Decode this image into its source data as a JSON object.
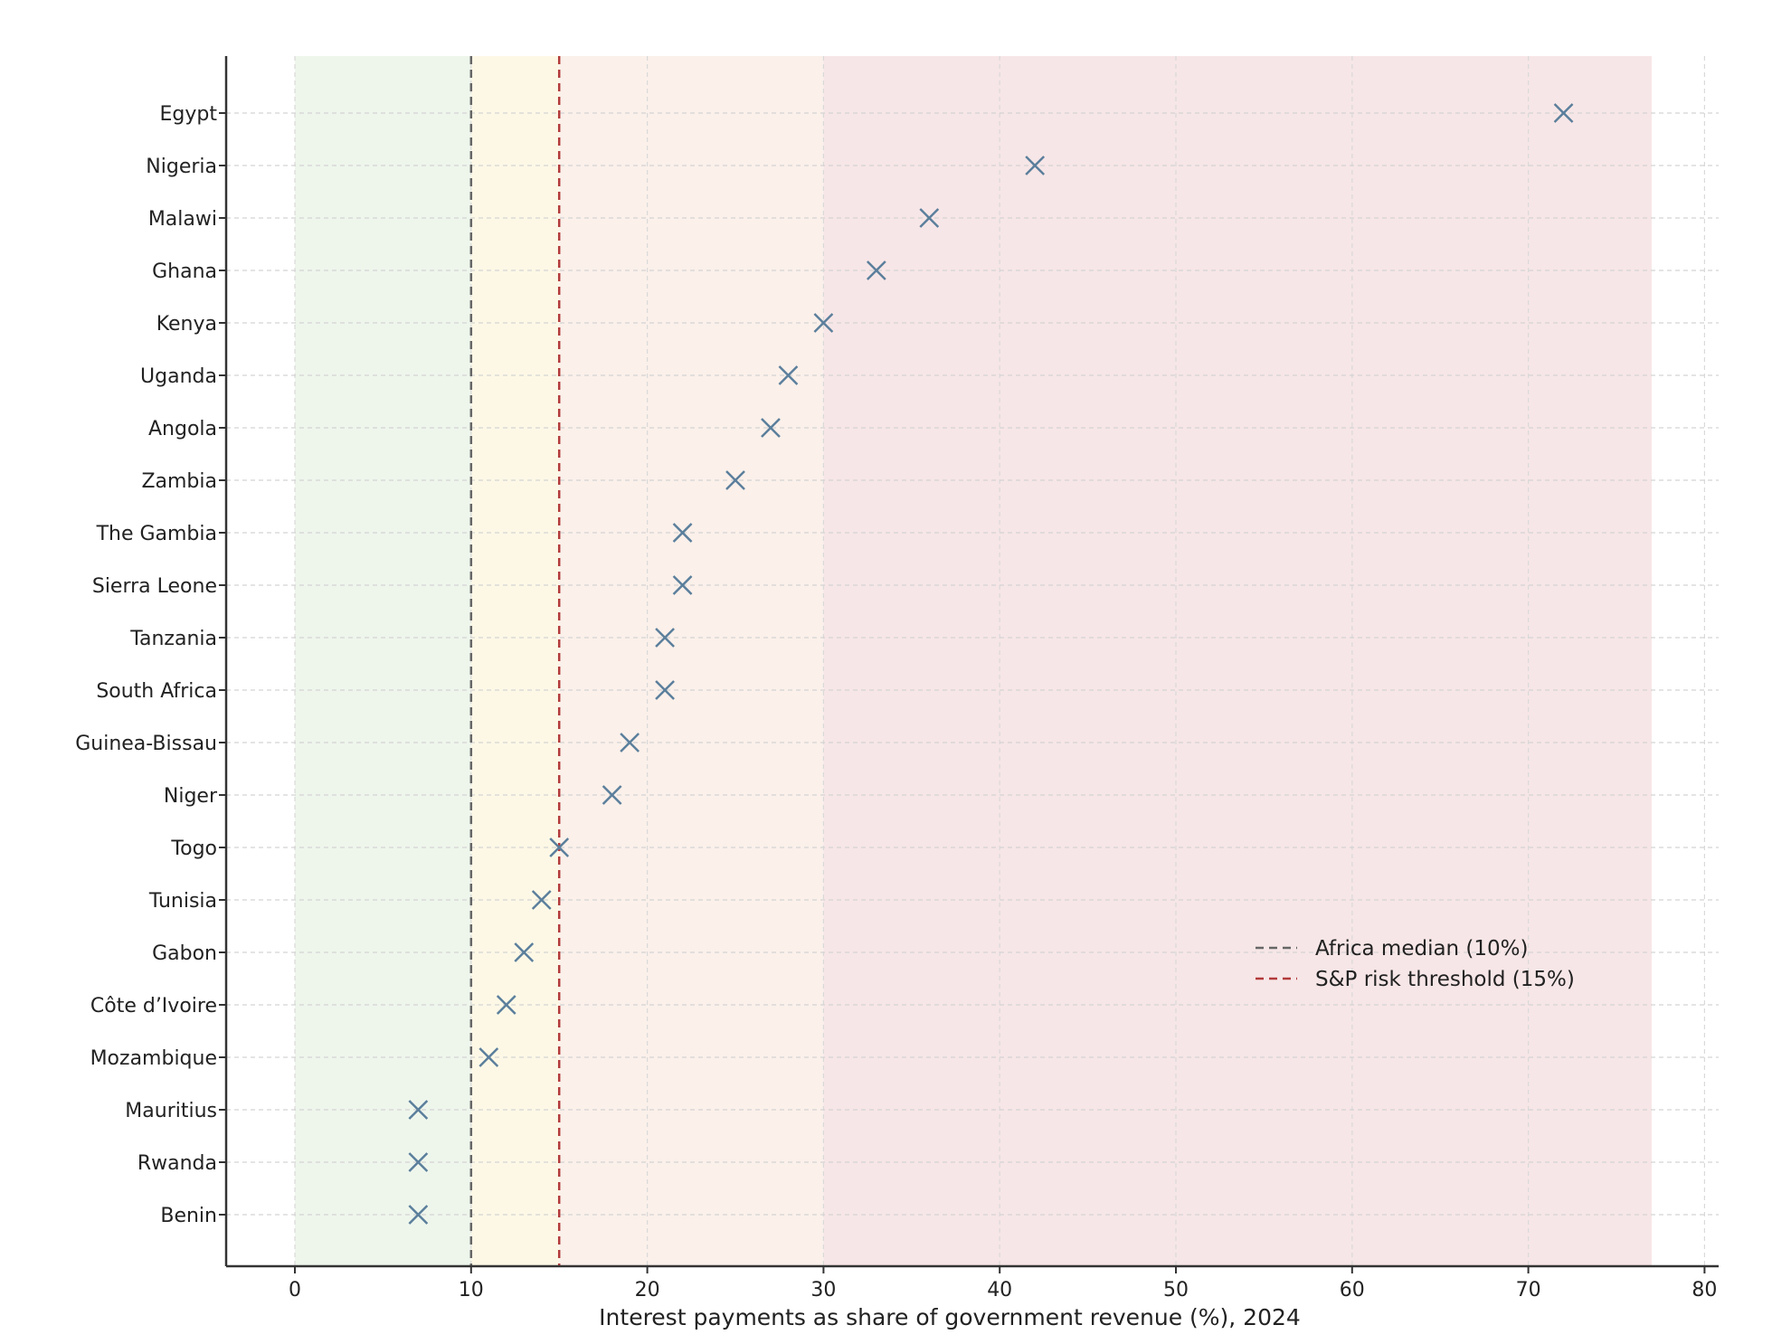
{
  "chart_data": {
    "type": "scatter",
    "title": "",
    "xlabel": "Interest payments as share of government revenue (%), 2024",
    "ylabel": "",
    "xlim": [
      -4,
      81
    ],
    "xticks": [
      0,
      10,
      20,
      30,
      40,
      50,
      60,
      70,
      80
    ],
    "grid": true,
    "legend_position": "lower-right",
    "marker": "x",
    "marker_color": "#5b7f9c",
    "bands": [
      {
        "from": 0,
        "to": 10,
        "color": "#eef6ec"
      },
      {
        "from": 10,
        "to": 15,
        "color": "#fdf8e6"
      },
      {
        "from": 15,
        "to": 30,
        "color": "#fbf0ea"
      },
      {
        "from": 30,
        "to": 77,
        "color": "#f7e6e7"
      }
    ],
    "reference_lines": [
      {
        "x": 10,
        "label": "Africa median (10%)",
        "color": "#666666"
      },
      {
        "x": 15,
        "label": "S&P risk threshold (15%)",
        "color": "#b23a3a"
      }
    ],
    "categories": [
      "Egypt",
      "Nigeria",
      "Malawi",
      "Ghana",
      "Kenya",
      "Uganda",
      "Angola",
      "Zambia",
      "The Gambia",
      "Sierra Leone",
      "Tanzania",
      "South Africa",
      "Guinea-Bissau",
      "Niger",
      "Togo",
      "Tunisia",
      "Gabon",
      "Côte d’Ivoire",
      "Mozambique",
      "Mauritius",
      "Rwanda",
      "Benin"
    ],
    "values": [
      72,
      42,
      36,
      33,
      30,
      28,
      27,
      25,
      22,
      22,
      21,
      21,
      19,
      18,
      15,
      14,
      13,
      12,
      11,
      7,
      7,
      7
    ]
  }
}
